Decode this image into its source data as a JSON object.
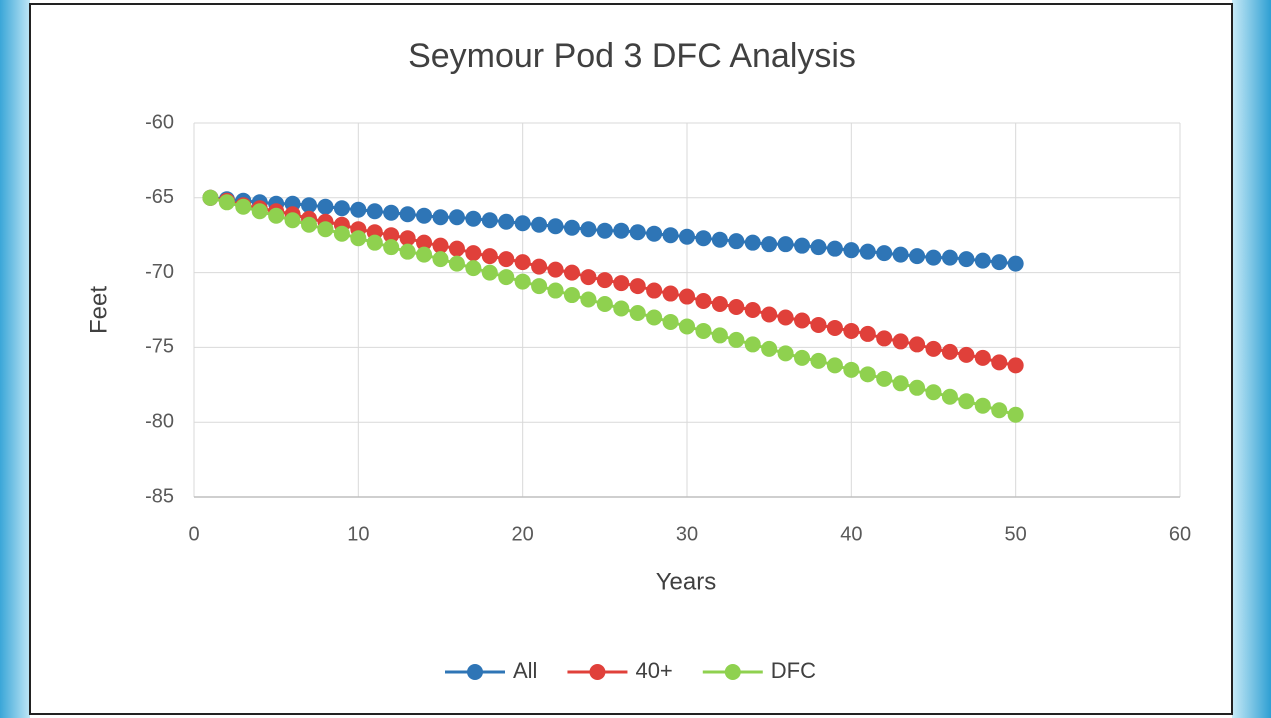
{
  "chart_data": {
    "type": "line",
    "title": "Seymour Pod 3 DFC Analysis",
    "x_label": "Years",
    "y_label": "Feet",
    "x": [
      1,
      2,
      3,
      4,
      5,
      6,
      7,
      8,
      9,
      10,
      11,
      12,
      13,
      14,
      15,
      16,
      17,
      18,
      19,
      20,
      21,
      22,
      23,
      24,
      25,
      26,
      27,
      28,
      29,
      30,
      31,
      32,
      33,
      34,
      35,
      36,
      37,
      38,
      39,
      40,
      41,
      42,
      43,
      44,
      45,
      46,
      47,
      48,
      49,
      50
    ],
    "series": [
      {
        "name": "All",
        "color": "#2e75b6",
        "values": [
          -65.0,
          -65.1,
          -65.2,
          -65.3,
          -65.4,
          -65.4,
          -65.5,
          -65.6,
          -65.7,
          -65.8,
          -65.9,
          -66.0,
          -66.1,
          -66.2,
          -66.3,
          -66.3,
          -66.4,
          -66.5,
          -66.6,
          -66.7,
          -66.8,
          -66.9,
          -67.0,
          -67.1,
          -67.2,
          -67.2,
          -67.3,
          -67.4,
          -67.5,
          -67.6,
          -67.7,
          -67.8,
          -67.9,
          -68.0,
          -68.1,
          -68.1,
          -68.2,
          -68.3,
          -68.4,
          -68.5,
          -68.6,
          -68.7,
          -68.8,
          -68.9,
          -69.0,
          -69.0,
          -69.1,
          -69.2,
          -69.3,
          -69.4
        ]
      },
      {
        "name": "40+",
        "color": "#e0403a",
        "values": [
          -65.0,
          -65.2,
          -65.5,
          -65.7,
          -65.9,
          -66.1,
          -66.4,
          -66.6,
          -66.8,
          -67.1,
          -67.3,
          -67.5,
          -67.7,
          -68.0,
          -68.2,
          -68.4,
          -68.7,
          -68.9,
          -69.1,
          -69.3,
          -69.6,
          -69.8,
          -70.0,
          -70.3,
          -70.5,
          -70.7,
          -70.9,
          -71.2,
          -71.4,
          -71.6,
          -71.9,
          -72.1,
          -72.3,
          -72.5,
          -72.8,
          -73.0,
          -73.2,
          -73.5,
          -73.7,
          -73.9,
          -74.1,
          -74.4,
          -74.6,
          -74.8,
          -75.1,
          -75.3,
          -75.5,
          -75.7,
          -76.0,
          -76.2
        ]
      },
      {
        "name": "DFC",
        "color": "#8fd14f",
        "values": [
          -65.0,
          -65.3,
          -65.6,
          -65.9,
          -66.2,
          -66.5,
          -66.8,
          -67.1,
          -67.4,
          -67.7,
          -68.0,
          -68.3,
          -68.6,
          -68.8,
          -69.1,
          -69.4,
          -69.7,
          -70.0,
          -70.3,
          -70.6,
          -70.9,
          -71.2,
          -71.5,
          -71.8,
          -72.1,
          -72.4,
          -72.7,
          -73.0,
          -73.3,
          -73.6,
          -73.9,
          -74.2,
          -74.5,
          -74.8,
          -75.1,
          -75.4,
          -75.7,
          -75.9,
          -76.2,
          -76.5,
          -76.8,
          -77.1,
          -77.4,
          -77.7,
          -78.0,
          -78.3,
          -78.6,
          -78.9,
          -79.2,
          -79.5
        ]
      }
    ],
    "xlim": [
      0,
      60
    ],
    "xticks": [
      0,
      10,
      20,
      30,
      40,
      50,
      60
    ],
    "ylim": [
      -85,
      -60
    ],
    "yticks": [
      -85,
      -80,
      -75,
      -70,
      -65,
      -60
    ],
    "grid": true,
    "legend": "bottom"
  }
}
